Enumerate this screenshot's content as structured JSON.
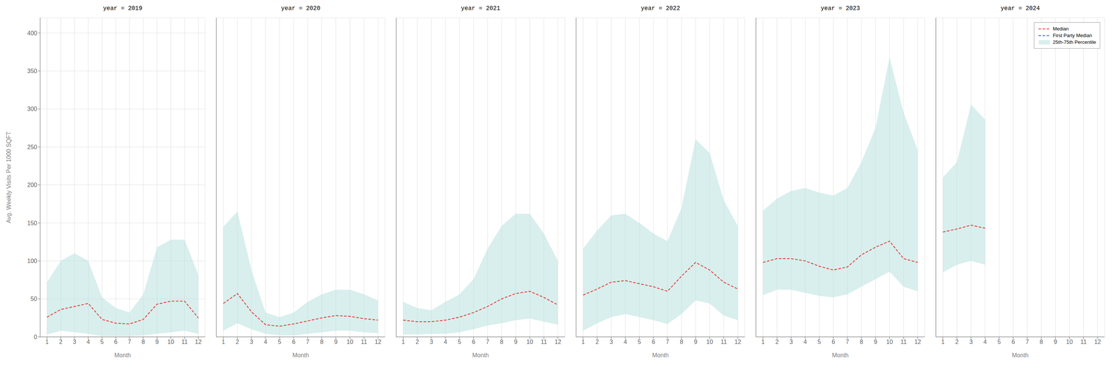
{
  "chart_data": [
    {
      "type": "line",
      "title": "year = 2019",
      "xlabel": "Month",
      "ylabel": "Avg. Weekly Visits Per 1000 SQFT",
      "x": [
        1,
        2,
        3,
        4,
        5,
        6,
        7,
        8,
        9,
        10,
        11,
        12
      ],
      "xlim": [
        0.5,
        12.5
      ],
      "xticks": [
        1,
        2,
        3,
        4,
        5,
        6,
        7,
        8,
        9,
        10,
        11,
        12
      ],
      "ylim": [
        0,
        420
      ],
      "yticks": [
        0,
        50,
        100,
        150,
        200,
        250,
        300,
        350,
        400
      ],
      "grid": true,
      "series": [
        {
          "name": "25th-75th Percentile",
          "type": "band",
          "color": "#b2dfdb",
          "low": [
            3,
            8,
            6,
            4,
            1,
            1,
            1,
            2,
            4,
            6,
            8,
            4
          ],
          "high": [
            72,
            100,
            110,
            100,
            52,
            38,
            32,
            56,
            118,
            128,
            128,
            82
          ]
        },
        {
          "name": "Median",
          "type": "line",
          "line_style": "dashed",
          "color": "#e53935",
          "values": [
            26,
            36,
            40,
            44,
            23,
            18,
            17,
            23,
            43,
            47,
            47,
            25
          ]
        }
      ]
    },
    {
      "type": "line",
      "title": "year = 2020",
      "xlabel": "Month",
      "x": [
        1,
        2,
        3,
        4,
        5,
        6,
        7,
        8,
        9,
        10,
        11,
        12
      ],
      "xlim": [
        0.5,
        12.5
      ],
      "xticks": [
        1,
        2,
        3,
        4,
        5,
        6,
        7,
        8,
        9,
        10,
        11,
        12
      ],
      "ylim": [
        0,
        420
      ],
      "yticks": [
        0,
        50,
        100,
        150,
        200,
        250,
        300,
        350,
        400
      ],
      "grid": true,
      "tick_labels": "x",
      "series": [
        {
          "name": "25th-75th Percentile",
          "type": "band",
          "color": "#b2dfdb",
          "low": [
            8,
            18,
            10,
            4,
            2,
            2,
            4,
            6,
            8,
            8,
            6,
            5
          ],
          "high": [
            145,
            165,
            88,
            32,
            26,
            32,
            46,
            56,
            62,
            62,
            56,
            48
          ]
        },
        {
          "name": "Median",
          "type": "line",
          "line_style": "dashed",
          "color": "#e53935",
          "values": [
            44,
            57,
            33,
            16,
            14,
            17,
            21,
            25,
            28,
            27,
            24,
            22
          ]
        }
      ]
    },
    {
      "type": "line",
      "title": "year = 2021",
      "xlabel": "Month",
      "x": [
        1,
        2,
        3,
        4,
        5,
        6,
        7,
        8,
        9,
        10,
        11,
        12
      ],
      "xlim": [
        0.5,
        12.5
      ],
      "xticks": [
        1,
        2,
        3,
        4,
        5,
        6,
        7,
        8,
        9,
        10,
        11,
        12
      ],
      "ylim": [
        0,
        420
      ],
      "yticks": [
        0,
        50,
        100,
        150,
        200,
        250,
        300,
        350,
        400
      ],
      "grid": true,
      "tick_labels": "x",
      "series": [
        {
          "name": "25th-75th Percentile",
          "type": "band",
          "color": "#b2dfdb",
          "low": [
            3,
            3,
            4,
            4,
            6,
            10,
            15,
            18,
            22,
            24,
            20,
            16
          ],
          "high": [
            46,
            38,
            35,
            46,
            56,
            76,
            116,
            146,
            162,
            162,
            136,
            100
          ]
        },
        {
          "name": "Median",
          "type": "line",
          "line_style": "dashed",
          "color": "#e53935",
          "values": [
            22,
            20,
            20,
            22,
            26,
            32,
            40,
            50,
            57,
            60,
            52,
            42
          ]
        }
      ]
    },
    {
      "type": "line",
      "title": "year = 2022",
      "xlabel": "Month",
      "x": [
        1,
        2,
        3,
        4,
        5,
        6,
        7,
        8,
        9,
        10,
        11,
        12
      ],
      "xlim": [
        0.5,
        12.5
      ],
      "xticks": [
        1,
        2,
        3,
        4,
        5,
        6,
        7,
        8,
        9,
        10,
        11,
        12
      ],
      "ylim": [
        0,
        420
      ],
      "yticks": [
        0,
        50,
        100,
        150,
        200,
        250,
        300,
        350,
        400
      ],
      "grid": true,
      "tick_labels": "x",
      "series": [
        {
          "name": "25th-75th Percentile",
          "type": "band",
          "color": "#b2dfdb",
          "low": [
            8,
            18,
            26,
            30,
            26,
            22,
            17,
            30,
            48,
            44,
            28,
            22
          ],
          "high": [
            116,
            140,
            160,
            162,
            150,
            136,
            126,
            170,
            260,
            242,
            180,
            146
          ]
        },
        {
          "name": "Median",
          "type": "line",
          "line_style": "dashed",
          "color": "#e53935",
          "values": [
            55,
            63,
            72,
            74,
            70,
            66,
            60,
            80,
            98,
            88,
            72,
            63
          ]
        }
      ]
    },
    {
      "type": "line",
      "title": "year = 2023",
      "xlabel": "Month",
      "x": [
        1,
        2,
        3,
        4,
        5,
        6,
        7,
        8,
        9,
        10,
        11,
        12
      ],
      "xlim": [
        0.5,
        12.5
      ],
      "xticks": [
        1,
        2,
        3,
        4,
        5,
        6,
        7,
        8,
        9,
        10,
        11,
        12
      ],
      "ylim": [
        0,
        420
      ],
      "yticks": [
        0,
        50,
        100,
        150,
        200,
        250,
        300,
        350,
        400
      ],
      "grid": true,
      "tick_labels": "x",
      "series": [
        {
          "name": "25th-75th Percentile",
          "type": "band",
          "color": "#b2dfdb",
          "low": [
            55,
            62,
            62,
            58,
            54,
            52,
            56,
            66,
            76,
            86,
            66,
            60
          ],
          "high": [
            166,
            182,
            192,
            196,
            190,
            186,
            196,
            230,
            275,
            368,
            295,
            246
          ]
        },
        {
          "name": "Median",
          "type": "line",
          "line_style": "dashed",
          "color": "#e53935",
          "values": [
            98,
            103,
            103,
            100,
            93,
            88,
            92,
            108,
            118,
            126,
            103,
            98
          ]
        }
      ]
    },
    {
      "type": "line",
      "title": "year = 2024",
      "xlabel": "Month",
      "x": [
        1,
        2,
        3,
        4,
        5,
        6,
        7,
        8,
        9,
        10,
        11,
        12
      ],
      "xlim": [
        0.5,
        12.5
      ],
      "xticks": [
        1,
        2,
        3,
        4,
        5,
        6,
        7,
        8,
        9,
        10,
        11,
        12
      ],
      "ylim": [
        0,
        420
      ],
      "yticks": [
        0,
        50,
        100,
        150,
        200,
        250,
        300,
        350,
        400
      ],
      "grid": true,
      "tick_labels": "x",
      "legend": "upper right",
      "series": [
        {
          "name": "Median",
          "type": "line",
          "line_style": "dashed",
          "color": "#e53935",
          "values": [
            138,
            142,
            147,
            143,
            null,
            null,
            null,
            null,
            null,
            null,
            null,
            null
          ]
        },
        {
          "name": "First Party Median",
          "type": "line",
          "line_style": "dashed",
          "color": "#3d6db5",
          "values": [
            null,
            null,
            null,
            null,
            null,
            null,
            null,
            null,
            null,
            null,
            null,
            null
          ]
        },
        {
          "name": "25th-75th Percentile",
          "type": "band",
          "color": "#b2dfdb",
          "low": [
            85,
            95,
            100,
            95,
            null,
            null,
            null,
            null,
            null,
            null,
            null,
            null
          ],
          "high": [
            210,
            230,
            306,
            286,
            null,
            null,
            null,
            null,
            null,
            null,
            null,
            null
          ]
        }
      ]
    }
  ]
}
